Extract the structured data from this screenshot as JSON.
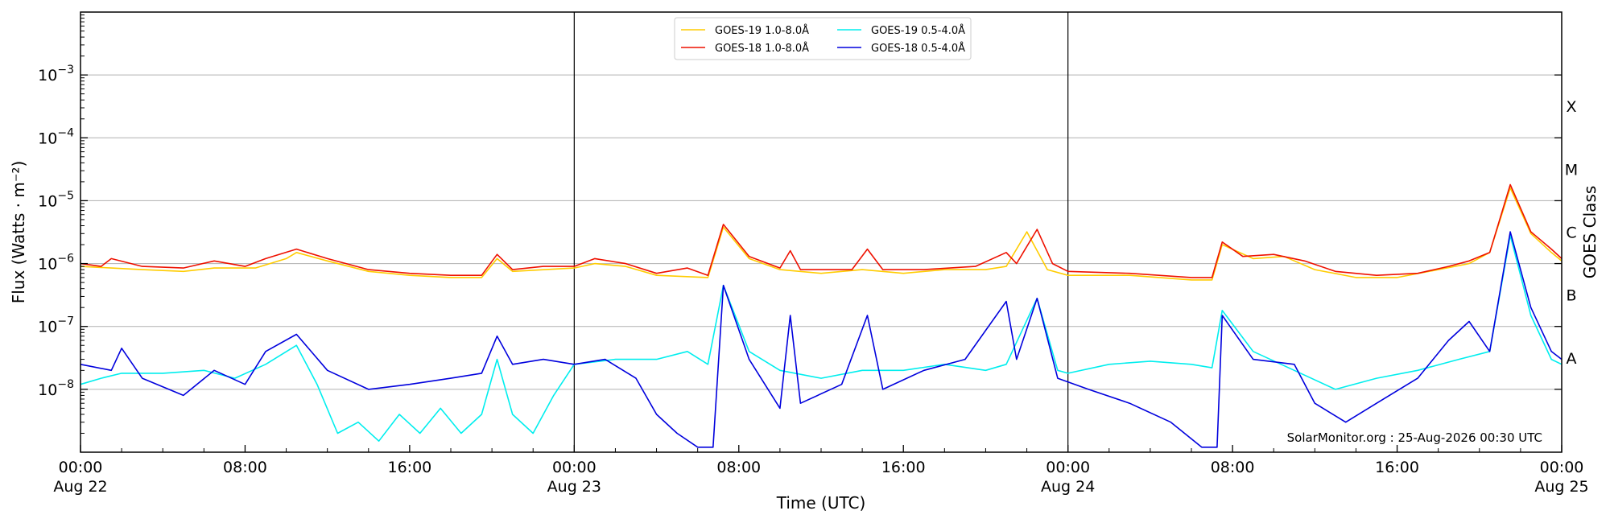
{
  "chart_data": {
    "type": "line",
    "title": "",
    "xlabel": "Time (UTC)",
    "ylabel": "Flux (Watts · m⁻²)",
    "right_label": "GOES Class",
    "y_scale": "log",
    "ylim": [
      1e-09,
      0.01
    ],
    "xlim": [
      "2026-08-22 00:00",
      "2026-08-25 00:00"
    ],
    "x_ticks": [
      {
        "at": "2026-08-22 00:00",
        "line1": "00:00",
        "line2": "Aug 22"
      },
      {
        "at": "2026-08-22 08:00",
        "line1": "08:00",
        "line2": ""
      },
      {
        "at": "2026-08-22 16:00",
        "line1": "16:00",
        "line2": ""
      },
      {
        "at": "2026-08-23 00:00",
        "line1": "00:00",
        "line2": "Aug 23"
      },
      {
        "at": "2026-08-23 08:00",
        "line1": "08:00",
        "line2": ""
      },
      {
        "at": "2026-08-23 16:00",
        "line1": "16:00",
        "line2": ""
      },
      {
        "at": "2026-08-24 00:00",
        "line1": "00:00",
        "line2": "Aug 24"
      },
      {
        "at": "2026-08-24 08:00",
        "line1": "08:00",
        "line2": ""
      },
      {
        "at": "2026-08-24 16:00",
        "line1": "16:00",
        "line2": ""
      },
      {
        "at": "2026-08-25 00:00",
        "line1": "00:00",
        "line2": "Aug 25"
      }
    ],
    "y_ticks": [
      {
        "value": 1e-08,
        "base": "10",
        "exp": "−8"
      },
      {
        "value": 1e-07,
        "base": "10",
        "exp": "−7"
      },
      {
        "value": 1e-06,
        "base": "10",
        "exp": "−6"
      },
      {
        "value": 1e-05,
        "base": "10",
        "exp": "−5"
      },
      {
        "value": 0.0001,
        "base": "10",
        "exp": "−4"
      },
      {
        "value": 0.001,
        "base": "10",
        "exp": "−3"
      }
    ],
    "class_labels": [
      {
        "label": "A",
        "value": 3.16e-08
      },
      {
        "label": "B",
        "value": 3.16e-07
      },
      {
        "label": "C",
        "value": 3.16e-06
      },
      {
        "label": "M",
        "value": 3.16e-05
      },
      {
        "label": "X",
        "value": 0.000316
      }
    ],
    "grid_lines": [
      1e-08,
      1e-07,
      1e-06,
      1e-05,
      0.0001,
      0.001
    ],
    "day_lines": [
      "2026-08-23 00:00",
      "2026-08-24 00:00"
    ],
    "legend_position": "top-center",
    "credit": "SolarMonitor.org : 25-Aug-2026 00:30 UTC",
    "series": [
      {
        "name": "GOES-19 1.0-8.0Å",
        "color": "#ffcc00",
        "points": [
          [
            "2026-08-22 00:00",
            9e-07
          ],
          [
            "2026-08-22 01:30",
            8.5e-07
          ],
          [
            "2026-08-22 03:00",
            8e-07
          ],
          [
            "2026-08-22 05:00",
            7.5e-07
          ],
          [
            "2026-08-22 06:30",
            8.5e-07
          ],
          [
            "2026-08-22 08:30",
            8.5e-07
          ],
          [
            "2026-08-22 10:00",
            1.2e-06
          ],
          [
            "2026-08-22 10:30",
            1.5e-06
          ],
          [
            "2026-08-22 12:00",
            1.1e-06
          ],
          [
            "2026-08-22 14:00",
            7.5e-07
          ],
          [
            "2026-08-22 16:00",
            6.5e-07
          ],
          [
            "2026-08-22 18:00",
            6e-07
          ],
          [
            "2026-08-22 19:30",
            6e-07
          ],
          [
            "2026-08-22 20:15",
            1.2e-06
          ],
          [
            "2026-08-22 21:00",
            7.5e-07
          ],
          [
            "2026-08-23 00:00",
            8.5e-07
          ],
          [
            "2026-08-23 01:00",
            1e-06
          ],
          [
            "2026-08-23 02:30",
            9e-07
          ],
          [
            "2026-08-23 04:00",
            6.5e-07
          ],
          [
            "2026-08-23 06:30",
            6e-07
          ],
          [
            "2026-08-23 07:15",
            3.8e-06
          ],
          [
            "2026-08-23 08:30",
            1.2e-06
          ],
          [
            "2026-08-23 10:00",
            8e-07
          ],
          [
            "2026-08-23 12:00",
            7e-07
          ],
          [
            "2026-08-23 14:00",
            8e-07
          ],
          [
            "2026-08-23 16:00",
            7e-07
          ],
          [
            "2026-08-23 18:00",
            8e-07
          ],
          [
            "2026-08-23 20:00",
            8e-07
          ],
          [
            "2026-08-23 21:00",
            9e-07
          ],
          [
            "2026-08-23 22:00",
            3.2e-06
          ],
          [
            "2026-08-23 23:00",
            8e-07
          ],
          [
            "2026-08-24 00:00",
            6.5e-07
          ],
          [
            "2026-08-24 03:00",
            6.5e-07
          ],
          [
            "2026-08-24 06:00",
            5.5e-07
          ],
          [
            "2026-08-24 07:00",
            5.5e-07
          ],
          [
            "2026-08-24 07:30",
            2e-06
          ],
          [
            "2026-08-24 09:00",
            1.2e-06
          ],
          [
            "2026-08-24 10:30",
            1.3e-06
          ],
          [
            "2026-08-24 12:00",
            8e-07
          ],
          [
            "2026-08-24 14:00",
            6e-07
          ],
          [
            "2026-08-24 16:00",
            6e-07
          ],
          [
            "2026-08-24 18:00",
            8e-07
          ],
          [
            "2026-08-24 19:30",
            1e-06
          ],
          [
            "2026-08-24 20:30",
            1.5e-06
          ],
          [
            "2026-08-24 21:30",
            1.6e-05
          ],
          [
            "2026-08-24 22:30",
            3e-06
          ],
          [
            "2026-08-24 23:30",
            1.5e-06
          ],
          [
            "2026-08-25 00:00",
            1.1e-06
          ]
        ]
      },
      {
        "name": "GOES-18 1.0-8.0Å",
        "color": "#ee1100",
        "points": [
          [
            "2026-08-22 00:00",
            1e-06
          ],
          [
            "2026-08-22 01:00",
            9e-07
          ],
          [
            "2026-08-22 01:30",
            1.2e-06
          ],
          [
            "2026-08-22 03:00",
            9e-07
          ],
          [
            "2026-08-22 05:00",
            8.5e-07
          ],
          [
            "2026-08-22 06:30",
            1.1e-06
          ],
          [
            "2026-08-22 08:00",
            9e-07
          ],
          [
            "2026-08-22 09:00",
            1.2e-06
          ],
          [
            "2026-08-22 10:30",
            1.7e-06
          ],
          [
            "2026-08-22 12:00",
            1.2e-06
          ],
          [
            "2026-08-22 14:00",
            8e-07
          ],
          [
            "2026-08-22 16:00",
            7e-07
          ],
          [
            "2026-08-22 18:00",
            6.5e-07
          ],
          [
            "2026-08-22 19:30",
            6.5e-07
          ],
          [
            "2026-08-22 20:15",
            1.4e-06
          ],
          [
            "2026-08-22 21:00",
            8e-07
          ],
          [
            "2026-08-22 22:30",
            9e-07
          ],
          [
            "2026-08-23 00:00",
            9e-07
          ],
          [
            "2026-08-23 01:00",
            1.2e-06
          ],
          [
            "2026-08-23 02:30",
            1e-06
          ],
          [
            "2026-08-23 04:00",
            7e-07
          ],
          [
            "2026-08-23 05:30",
            8.5e-07
          ],
          [
            "2026-08-23 06:30",
            6.5e-07
          ],
          [
            "2026-08-23 07:15",
            4.2e-06
          ],
          [
            "2026-08-23 08:30",
            1.3e-06
          ],
          [
            "2026-08-23 10:00",
            8.5e-07
          ],
          [
            "2026-08-23 10:30",
            1.6e-06
          ],
          [
            "2026-08-23 11:00",
            8e-07
          ],
          [
            "2026-08-23 13:30",
            8e-07
          ],
          [
            "2026-08-23 14:15",
            1.7e-06
          ],
          [
            "2026-08-23 15:00",
            8e-07
          ],
          [
            "2026-08-23 17:00",
            8e-07
          ],
          [
            "2026-08-23 19:30",
            9e-07
          ],
          [
            "2026-08-23 21:00",
            1.5e-06
          ],
          [
            "2026-08-23 21:30",
            1e-06
          ],
          [
            "2026-08-23 22:30",
            3.5e-06
          ],
          [
            "2026-08-23 23:15",
            1e-06
          ],
          [
            "2026-08-24 00:00",
            7.5e-07
          ],
          [
            "2026-08-24 03:00",
            7e-07
          ],
          [
            "2026-08-24 06:00",
            6e-07
          ],
          [
            "2026-08-24 07:00",
            6e-07
          ],
          [
            "2026-08-24 07:30",
            2.2e-06
          ],
          [
            "2026-08-24 08:30",
            1.3e-06
          ],
          [
            "2026-08-24 10:00",
            1.4e-06
          ],
          [
            "2026-08-24 11:30",
            1.1e-06
          ],
          [
            "2026-08-24 13:00",
            7.5e-07
          ],
          [
            "2026-08-24 15:00",
            6.5e-07
          ],
          [
            "2026-08-24 17:00",
            7e-07
          ],
          [
            "2026-08-24 18:30",
            9e-07
          ],
          [
            "2026-08-24 19:30",
            1.1e-06
          ],
          [
            "2026-08-24 20:30",
            1.5e-06
          ],
          [
            "2026-08-24 21:30",
            1.8e-05
          ],
          [
            "2026-08-24 22:30",
            3.2e-06
          ],
          [
            "2026-08-24 23:30",
            1.7e-06
          ],
          [
            "2026-08-25 00:00",
            1.2e-06
          ]
        ]
      },
      {
        "name": "GOES-19 0.5-4.0Å",
        "color": "#00eeee",
        "points": [
          [
            "2026-08-22 00:00",
            1.2e-08
          ],
          [
            "2026-08-22 01:00",
            1.5e-08
          ],
          [
            "2026-08-22 02:00",
            1.8e-08
          ],
          [
            "2026-08-22 04:00",
            1.8e-08
          ],
          [
            "2026-08-22 06:00",
            2e-08
          ],
          [
            "2026-08-22 07:30",
            1.5e-08
          ],
          [
            "2026-08-22 09:00",
            2.5e-08
          ],
          [
            "2026-08-22 10:30",
            5e-08
          ],
          [
            "2026-08-22 11:30",
            1.2e-08
          ],
          [
            "2026-08-22 12:30",
            2e-09
          ],
          [
            "2026-08-22 13:30",
            3e-09
          ],
          [
            "2026-08-22 14:30",
            1.5e-09
          ],
          [
            "2026-08-22 15:30",
            4e-09
          ],
          [
            "2026-08-22 16:30",
            2e-09
          ],
          [
            "2026-08-22 17:30",
            5e-09
          ],
          [
            "2026-08-22 18:30",
            2e-09
          ],
          [
            "2026-08-22 19:30",
            4e-09
          ],
          [
            "2026-08-22 20:15",
            3e-08
          ],
          [
            "2026-08-22 21:00",
            4e-09
          ],
          [
            "2026-08-22 22:00",
            2e-09
          ],
          [
            "2026-08-22 23:00",
            8e-09
          ],
          [
            "2026-08-23 00:00",
            2.5e-08
          ],
          [
            "2026-08-23 02:00",
            3e-08
          ],
          [
            "2026-08-23 04:00",
            3e-08
          ],
          [
            "2026-08-23 05:30",
            4e-08
          ],
          [
            "2026-08-23 06:30",
            2.5e-08
          ],
          [
            "2026-08-23 07:15",
            4.5e-07
          ],
          [
            "2026-08-23 08:30",
            4e-08
          ],
          [
            "2026-08-23 10:00",
            2e-08
          ],
          [
            "2026-08-23 12:00",
            1.5e-08
          ],
          [
            "2026-08-23 14:00",
            2e-08
          ],
          [
            "2026-08-23 16:00",
            2e-08
          ],
          [
            "2026-08-23 18:00",
            2.5e-08
          ],
          [
            "2026-08-23 20:00",
            2e-08
          ],
          [
            "2026-08-23 21:00",
            2.5e-08
          ],
          [
            "2026-08-23 22:30",
            2.8e-07
          ],
          [
            "2026-08-23 23:30",
            2e-08
          ],
          [
            "2026-08-24 00:00",
            1.8e-08
          ],
          [
            "2026-08-24 02:00",
            2.5e-08
          ],
          [
            "2026-08-24 04:00",
            2.8e-08
          ],
          [
            "2026-08-24 06:00",
            2.5e-08
          ],
          [
            "2026-08-24 07:00",
            2.2e-08
          ],
          [
            "2026-08-24 07:30",
            1.8e-07
          ],
          [
            "2026-08-24 09:00",
            4e-08
          ],
          [
            "2026-08-24 11:00",
            2e-08
          ],
          [
            "2026-08-24 13:00",
            1e-08
          ],
          [
            "2026-08-24 15:00",
            1.5e-08
          ],
          [
            "2026-08-24 17:00",
            2e-08
          ],
          [
            "2026-08-24 19:00",
            3e-08
          ],
          [
            "2026-08-24 20:30",
            4e-08
          ],
          [
            "2026-08-24 21:30",
            2.8e-06
          ],
          [
            "2026-08-24 22:30",
            1.5e-07
          ],
          [
            "2026-08-24 23:30",
            3e-08
          ],
          [
            "2026-08-25 00:00",
            2.5e-08
          ]
        ]
      },
      {
        "name": "GOES-18 0.5-4.0Å",
        "color": "#0000dd",
        "points": [
          [
            "2026-08-22 00:00",
            2.5e-08
          ],
          [
            "2026-08-22 01:30",
            2e-08
          ],
          [
            "2026-08-22 02:00",
            4.5e-08
          ],
          [
            "2026-08-22 03:00",
            1.5e-08
          ],
          [
            "2026-08-22 05:00",
            8e-09
          ],
          [
            "2026-08-22 06:30",
            2e-08
          ],
          [
            "2026-08-22 08:00",
            1.2e-08
          ],
          [
            "2026-08-22 09:00",
            4e-08
          ],
          [
            "2026-08-22 10:30",
            7.5e-08
          ],
          [
            "2026-08-22 12:00",
            2e-08
          ],
          [
            "2026-08-22 14:00",
            1e-08
          ],
          [
            "2026-08-22 16:00",
            1.2e-08
          ],
          [
            "2026-08-22 18:00",
            1.5e-08
          ],
          [
            "2026-08-22 19:30",
            1.8e-08
          ],
          [
            "2026-08-22 20:15",
            7e-08
          ],
          [
            "2026-08-22 21:00",
            2.5e-08
          ],
          [
            "2026-08-22 22:30",
            3e-08
          ],
          [
            "2026-08-23 00:00",
            2.5e-08
          ],
          [
            "2026-08-23 01:30",
            3e-08
          ],
          [
            "2026-08-23 03:00",
            1.5e-08
          ],
          [
            "2026-08-23 04:00",
            4e-09
          ],
          [
            "2026-08-23 05:00",
            2e-09
          ],
          [
            "2026-08-23 06:00",
            1.2e-09
          ],
          [
            "2026-08-23 06:45",
            1.2e-09
          ],
          [
            "2026-08-23 07:15",
            4.5e-07
          ],
          [
            "2026-08-23 08:30",
            3e-08
          ],
          [
            "2026-08-23 10:00",
            5e-09
          ],
          [
            "2026-08-23 10:30",
            1.5e-07
          ],
          [
            "2026-08-23 11:00",
            6e-09
          ],
          [
            "2026-08-23 13:00",
            1.2e-08
          ],
          [
            "2026-08-23 14:15",
            1.5e-07
          ],
          [
            "2026-08-23 15:00",
            1e-08
          ],
          [
            "2026-08-23 17:00",
            2e-08
          ],
          [
            "2026-08-23 19:00",
            3e-08
          ],
          [
            "2026-08-23 21:00",
            2.5e-07
          ],
          [
            "2026-08-23 21:30",
            3e-08
          ],
          [
            "2026-08-23 22:30",
            2.8e-07
          ],
          [
            "2026-08-23 23:30",
            1.5e-08
          ],
          [
            "2026-08-24 01:00",
            1e-08
          ],
          [
            "2026-08-24 03:00",
            6e-09
          ],
          [
            "2026-08-24 05:00",
            3e-09
          ],
          [
            "2026-08-24 06:30",
            1.2e-09
          ],
          [
            "2026-08-24 07:15",
            1.2e-09
          ],
          [
            "2026-08-24 07:30",
            1.5e-07
          ],
          [
            "2026-08-24 09:00",
            3e-08
          ],
          [
            "2026-08-24 11:00",
            2.5e-08
          ],
          [
            "2026-08-24 12:00",
            6e-09
          ],
          [
            "2026-08-24 13:30",
            3e-09
          ],
          [
            "2026-08-24 15:00",
            6e-09
          ],
          [
            "2026-08-24 17:00",
            1.5e-08
          ],
          [
            "2026-08-24 18:30",
            6e-08
          ],
          [
            "2026-08-24 19:30",
            1.2e-07
          ],
          [
            "2026-08-24 20:30",
            4e-08
          ],
          [
            "2026-08-24 21:30",
            3.2e-06
          ],
          [
            "2026-08-24 22:30",
            2e-07
          ],
          [
            "2026-08-24 23:30",
            4e-08
          ],
          [
            "2026-08-25 00:00",
            3e-08
          ]
        ]
      }
    ]
  }
}
